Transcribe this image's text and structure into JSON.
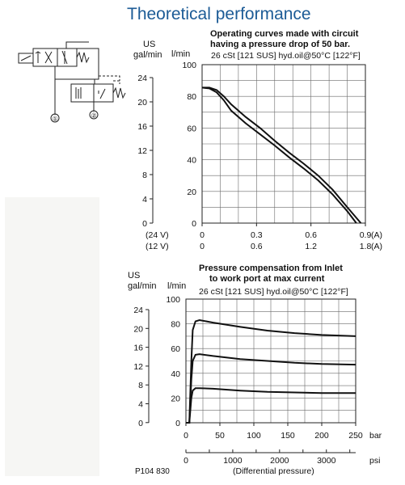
{
  "header": {
    "title": "Theoretical performance"
  },
  "schematic": {
    "port_1": "①",
    "port_2": "②"
  },
  "chart_data": [
    {
      "type": "line",
      "title_line1": "Operating curves made with circuit",
      "title_line2": "having a pressure drop of 50 bar.",
      "subtitle": "26 cSt [121 SUS] hyd.oil@50°C [122°F]",
      "left_unit_line1": "US",
      "left_unit_line2": "gal/min",
      "right_unit": "l/min",
      "y_ticks": [
        "100",
        "80",
        "60",
        "40",
        "20",
        "0"
      ],
      "y_gal_ticks": [
        "24",
        "20",
        "16",
        "12",
        "8",
        "4",
        "0"
      ],
      "x_rows": [
        {
          "label": "(24 V)",
          "ticks": [
            "0",
            "0.3",
            "0.6",
            "0.9"
          ],
          "unit": "(A)"
        },
        {
          "label": "(12 V)",
          "ticks": [
            "0",
            "0.6",
            "1.2",
            "1.8"
          ],
          "unit": "(A)"
        }
      ],
      "xlim": [
        0,
        0.9
      ],
      "ylim": [
        0,
        100
      ],
      "series": [
        {
          "points": [
            [
              0,
              85.5
            ],
            [
              0.04,
              85.5
            ],
            [
              0.08,
              84
            ],
            [
              0.12,
              80
            ],
            [
              0.16,
              75
            ],
            [
              0.24,
              67
            ],
            [
              0.32,
              60
            ],
            [
              0.4,
              52
            ],
            [
              0.48,
              44.5
            ],
            [
              0.56,
              37.5
            ],
            [
              0.64,
              30
            ],
            [
              0.72,
              21
            ],
            [
              0.8,
              10
            ],
            [
              0.875,
              0
            ]
          ]
        },
        {
          "points": [
            [
              0,
              85.5
            ],
            [
              0.04,
              85
            ],
            [
              0.08,
              82.5
            ],
            [
              0.12,
              77.5
            ],
            [
              0.16,
              71
            ],
            [
              0.24,
              63
            ],
            [
              0.32,
              56
            ],
            [
              0.4,
              49
            ],
            [
              0.48,
              41.5
            ],
            [
              0.56,
              34.5
            ],
            [
              0.64,
              27
            ],
            [
              0.72,
              18
            ],
            [
              0.8,
              7.5
            ],
            [
              0.85,
              0
            ]
          ]
        }
      ]
    },
    {
      "type": "line",
      "title_line1": "Pressure compensation from Inlet",
      "title_line2": "to work port at max current",
      "subtitle": "26 cSt [121 SUS] hyd.oil@50°C [122°F]",
      "left_unit_line1": "US",
      "left_unit_line2": "gal/min",
      "right_unit": "l/min",
      "y_ticks": [
        "100",
        "80",
        "60",
        "40",
        "20",
        "0"
      ],
      "y_gal_ticks": [
        "24",
        "20",
        "16",
        "12",
        "8",
        "4",
        "0"
      ],
      "x_ticks": [
        "0",
        "50",
        "100",
        "150",
        "200",
        "250"
      ],
      "x_unit": "bar",
      "psi_ticks": [
        "0",
        "1000",
        "2000",
        "3000"
      ],
      "psi_unit": "psi",
      "psi_label": "(Differential pressure)",
      "code": "P104 830",
      "xlim": [
        0,
        250
      ],
      "ylim": [
        0,
        100
      ],
      "series": [
        {
          "points": [
            [
              0,
              0
            ],
            [
              5,
              0
            ],
            [
              8,
              50
            ],
            [
              10,
              75
            ],
            [
              14,
              82
            ],
            [
              20,
              83
            ],
            [
              40,
              81
            ],
            [
              80,
              77.5
            ],
            [
              120,
              74.5
            ],
            [
              160,
              72.5
            ],
            [
              200,
              71
            ],
            [
              250,
              70
            ]
          ]
        },
        {
          "points": [
            [
              0,
              0
            ],
            [
              5,
              0
            ],
            [
              8,
              35
            ],
            [
              10,
              50
            ],
            [
              14,
              55
            ],
            [
              20,
              55.5
            ],
            [
              40,
              54
            ],
            [
              80,
              51.5
            ],
            [
              120,
              50
            ],
            [
              160,
              48.5
            ],
            [
              200,
              47.5
            ],
            [
              250,
              47
            ]
          ]
        },
        {
          "points": [
            [
              0,
              0
            ],
            [
              5,
              0
            ],
            [
              8,
              20
            ],
            [
              10,
              26
            ],
            [
              14,
              28
            ],
            [
              20,
              28
            ],
            [
              40,
              27.5
            ],
            [
              80,
              26
            ],
            [
              120,
              25
            ],
            [
              160,
              24.5
            ],
            [
              200,
              24
            ],
            [
              250,
              24
            ]
          ]
        }
      ]
    }
  ]
}
